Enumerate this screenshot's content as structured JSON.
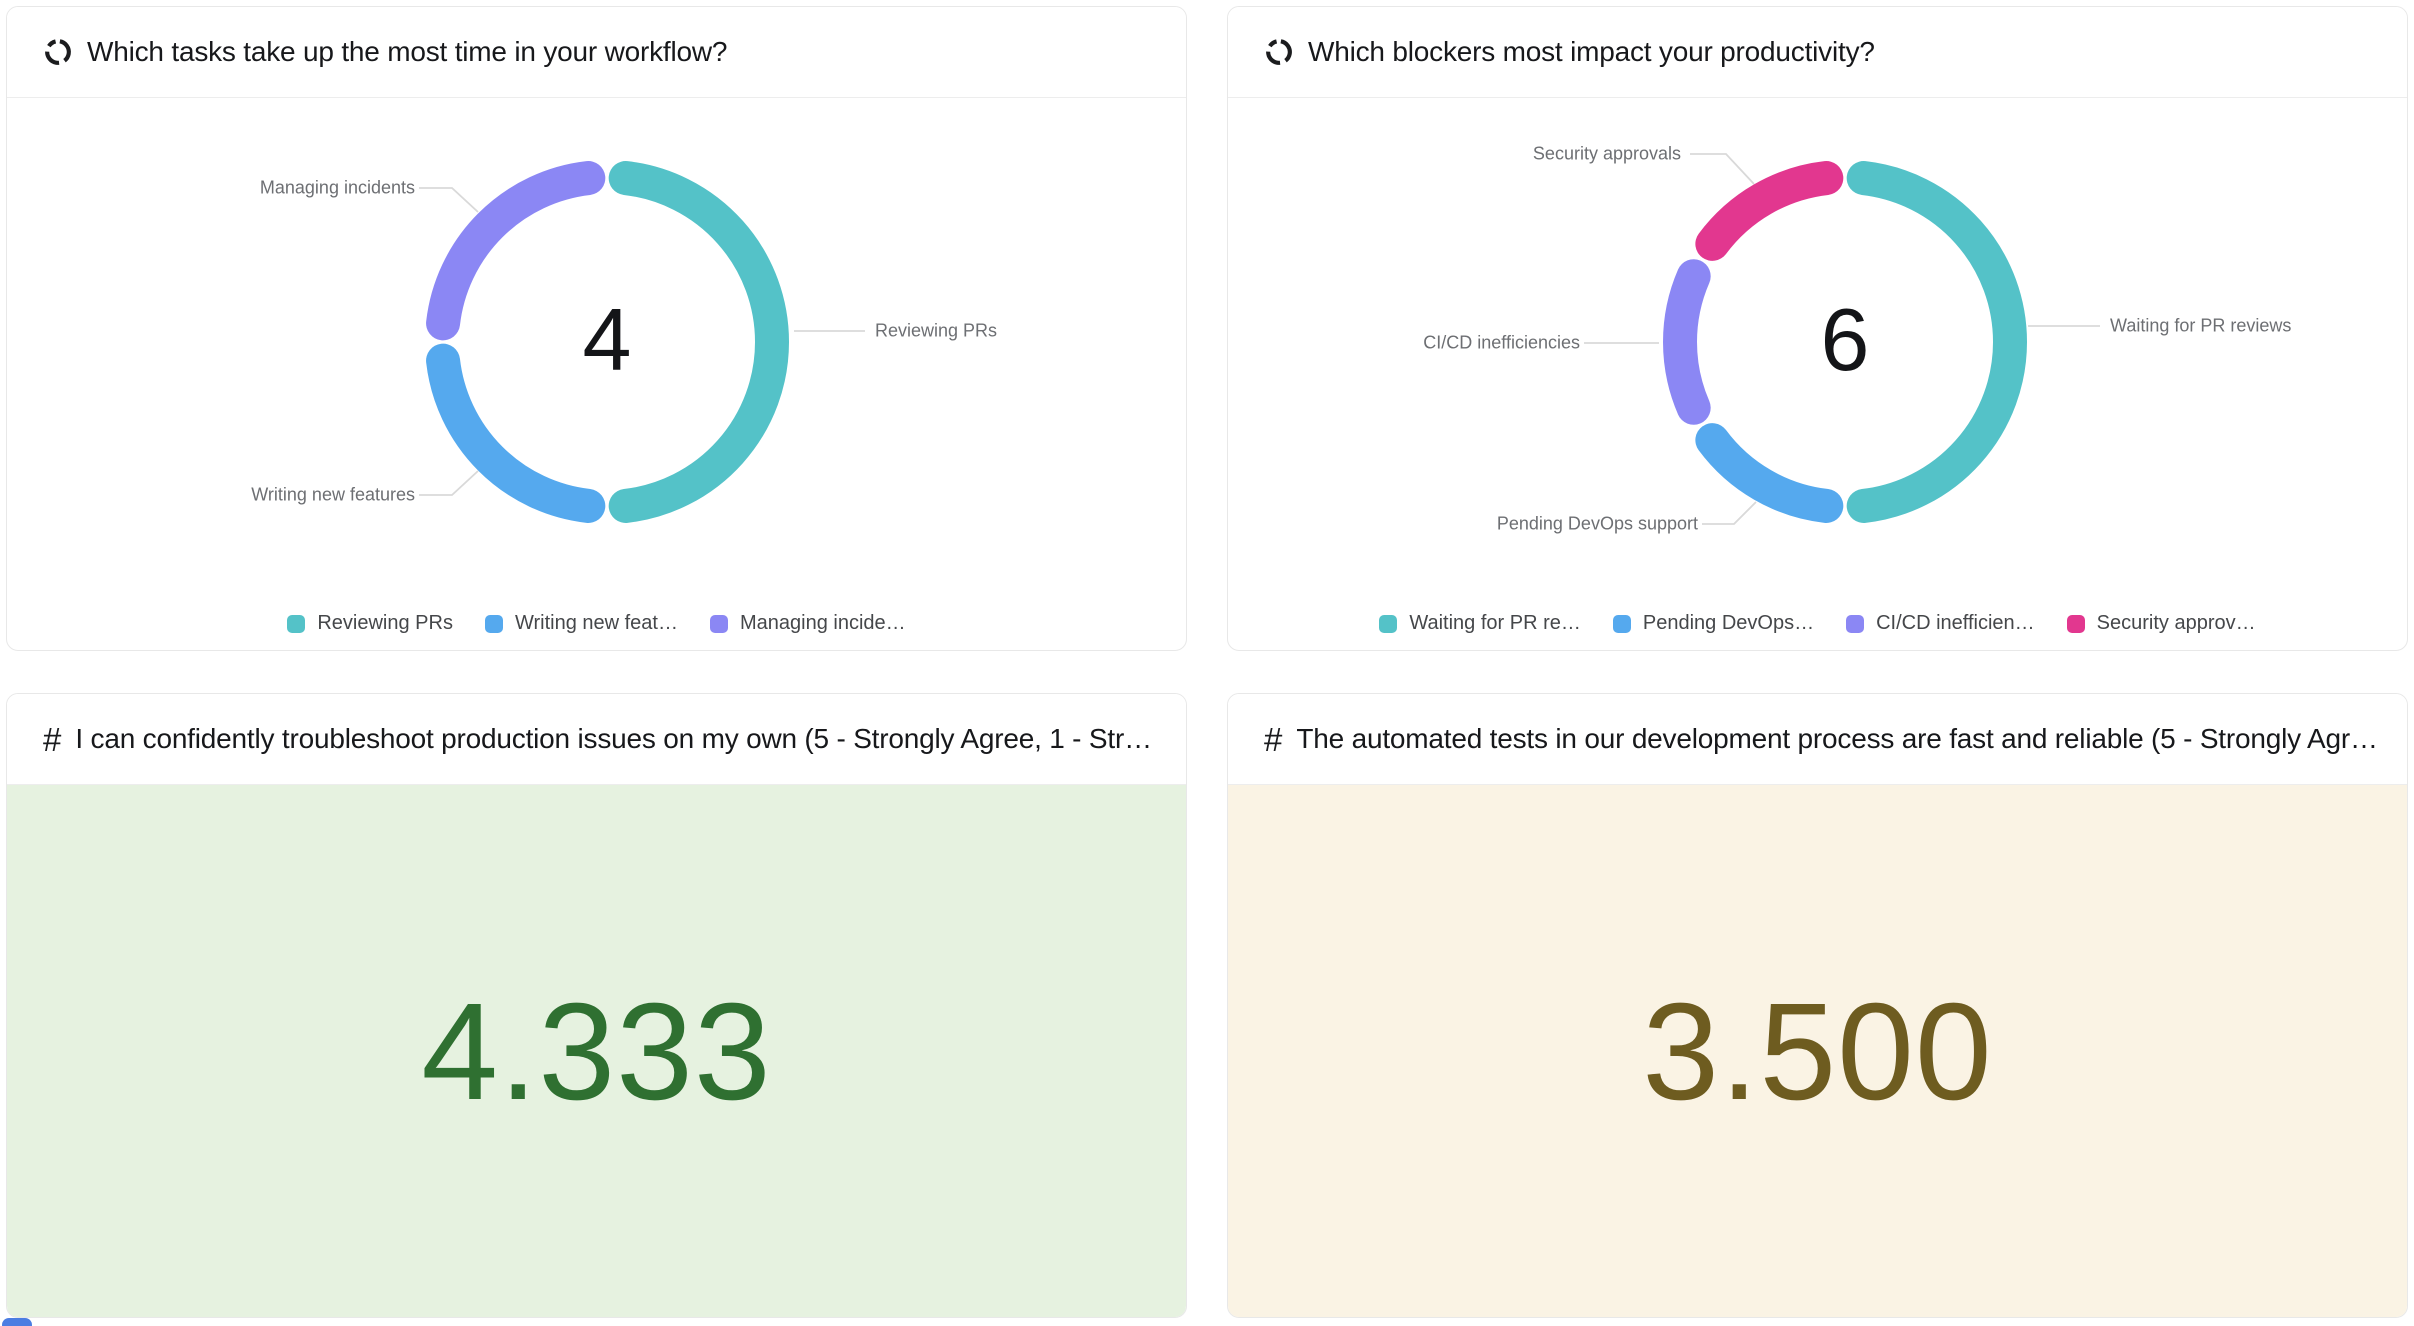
{
  "chart_data": [
    {
      "type": "donut",
      "icon": "donut-chart-icon",
      "title": "Which tasks take up the most time in your workflow?",
      "center_total": "4",
      "legend_position": "bottom",
      "series": [
        {
          "name": "Reviewing PRs",
          "legend_label": "Reviewing PRs",
          "value": 2,
          "color": "#54C2C8"
        },
        {
          "name": "Writing new features",
          "legend_label": "Writing new feat…",
          "value": 1,
          "color": "#55A9EE"
        },
        {
          "name": "Managing incidents",
          "legend_label": "Managing incide…",
          "value": 1,
          "color": "#8B87F4"
        }
      ]
    },
    {
      "type": "donut",
      "icon": "donut-chart-icon",
      "title": "Which blockers most impact your productivity?",
      "center_total": "6",
      "legend_position": "bottom",
      "series": [
        {
          "name": "Waiting for PR reviews",
          "legend_label": "Waiting for PR re…",
          "value": 3,
          "color": "#54C2C8"
        },
        {
          "name": "Pending DevOps support",
          "legend_label": "Pending DevOps…",
          "value": 1,
          "color": "#55A9EE"
        },
        {
          "name": "CI/CD inefficiencies",
          "legend_label": "CI/CD inefficien…",
          "value": 1,
          "color": "#8B87F4"
        },
        {
          "name": "Security approvals",
          "legend_label": "Security approv…",
          "value": 1,
          "color": "#E2378F"
        }
      ]
    },
    {
      "type": "number",
      "icon": "hash-icon",
      "hash_glyph": "#",
      "title": "I can confidently troubleshoot production issues on my own (5 - Strongly Agree, 1 - Stron…",
      "value": "4.333",
      "text_color": "#2F7031",
      "background": "#E6F2E0"
    },
    {
      "type": "number",
      "icon": "hash-icon",
      "hash_glyph": "#",
      "title": "The automated tests in our development process are fast and reliable (5 - Strongly Agree…",
      "value": "3.500",
      "text_color": "#6E5C20",
      "background": "#FAF3E4"
    }
  ]
}
